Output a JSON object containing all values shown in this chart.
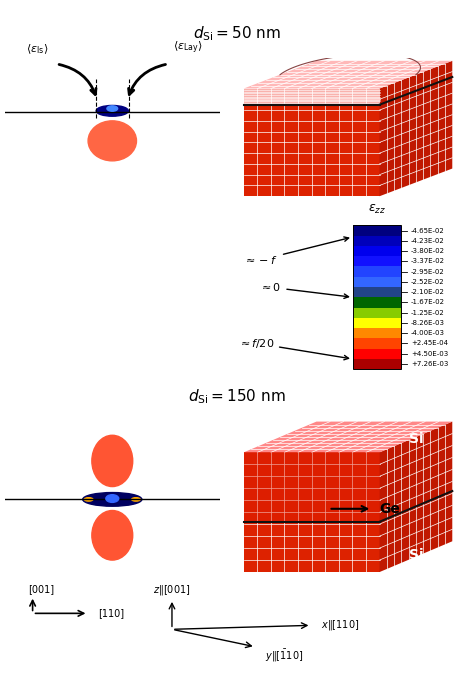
{
  "title_top": "$d_{\\mathrm{Si}} = 50\\ \\mathrm{nm}$",
  "title_mid": "$d_{\\mathrm{Si}} = 150\\ \\mathrm{nm}$",
  "colorbar_label": "$\\epsilon_{zz}$",
  "colorbar_ticks_top_to_bottom": [
    "-4.65E-02",
    "-4.23E-02",
    "-3.80E-02",
    "-3.37E-02",
    "-2.95E-02",
    "-2.52E-02",
    "-2.10E-02",
    "-1.67E-02",
    "-1.25E-02",
    "-8.26E-03",
    "-4.00E-03",
    "+2.45E-04",
    "+4.50E-03",
    "+7.26E-03"
  ],
  "bg_red": "#CC2200",
  "bg_red_light": "#FF6644",
  "white": "#FFFFFF"
}
